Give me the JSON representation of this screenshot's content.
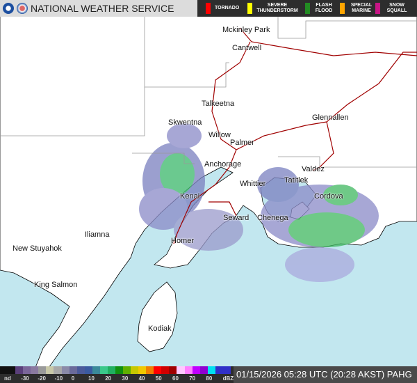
{
  "header": {
    "title": "NATIONAL WEATHER SERVICE",
    "legend": [
      {
        "label": "TORNADO",
        "color": "#ff0000"
      },
      {
        "label": "SEVERE THUNDERSTORM",
        "color": "#ffff00"
      },
      {
        "label": "FLASH FLOOD",
        "color": "#228b22"
      },
      {
        "label": "SPECIAL MARINE",
        "color": "#ffa500"
      },
      {
        "label": "SNOW SQUALL",
        "color": "#c71585"
      }
    ]
  },
  "cities": [
    {
      "name": "Mckinley Park"
    },
    {
      "name": "Cantwell"
    },
    {
      "name": "Talkeetna"
    },
    {
      "name": "Skwentna"
    },
    {
      "name": "Glennallen"
    },
    {
      "name": "Willow"
    },
    {
      "name": "Palmer"
    },
    {
      "name": "Anchorage"
    },
    {
      "name": "Valdez"
    },
    {
      "name": "Whittier"
    },
    {
      "name": "Tatitlek"
    },
    {
      "name": "Kenai"
    },
    {
      "name": "Cordova"
    },
    {
      "name": "Seward"
    },
    {
      "name": "Chenega"
    },
    {
      "name": "Iliamna"
    },
    {
      "name": "Homer"
    },
    {
      "name": "New Stuyahok"
    },
    {
      "name": "King Salmon"
    },
    {
      "name": "Kodiak"
    }
  ],
  "colorbar": {
    "labels": [
      "nd",
      "-30",
      "-20",
      "-10",
      "0",
      "10",
      "20",
      "30",
      "40",
      "50",
      "60",
      "70",
      "80",
      "dBZ"
    ],
    "colors": [
      "#111111",
      "#111111",
      "#5a3f7a",
      "#7a6699",
      "#8a7aa0",
      "#9a9a9a",
      "#c8c8a8",
      "#a8a8a8",
      "#8a8aa8",
      "#6a6a9a",
      "#4a5a9a",
      "#3a5aa0",
      "#3a8a9a",
      "#3ac88a",
      "#20b060",
      "#109010",
      "#60b000",
      "#c8c800",
      "#f0c800",
      "#f08000",
      "#ff0000",
      "#d00000",
      "#a00000",
      "#ffc8ff",
      "#ff80ff",
      "#c000ff",
      "#9000d0",
      "#00e0f0",
      "#3030c8",
      "#3030c8"
    ]
  },
  "timestamp": "01/15/2026 05:28 UTC (20:28 AKST) PAHG"
}
